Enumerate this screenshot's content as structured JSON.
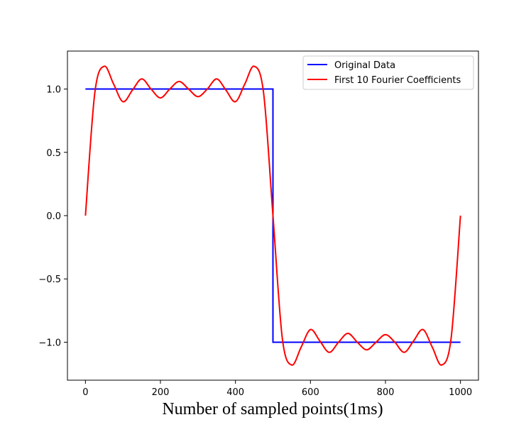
{
  "chart_data": {
    "type": "line",
    "title": "",
    "xlabel": "Number of sampled points(1ms)",
    "ylabel": "",
    "xlim": [
      -48,
      1048
    ],
    "ylim": [
      -1.3,
      1.3
    ],
    "xticks": [
      0,
      200,
      400,
      600,
      800,
      1000
    ],
    "xtick_labels": [
      "0",
      "200",
      "400",
      "600",
      "800",
      "1000"
    ],
    "yticks": [
      1.0,
      0.5,
      0.0,
      -0.5,
      -1.0
    ],
    "ytick_labels": [
      "1.0",
      "0.5",
      "0.0",
      "−0.5",
      "−1.0"
    ],
    "grid": false,
    "legend_position": "top-right",
    "series": [
      {
        "name": "Original Data",
        "color": "#0000ff",
        "x": [
          0,
          500,
          500,
          1000
        ],
        "y": [
          1.0,
          1.0,
          -1.0,
          -1.0
        ]
      },
      {
        "name": "First 10 Fourier Coefficients",
        "color": "#ff0000",
        "x": [
          0,
          25,
          50,
          75,
          100,
          125,
          150,
          175,
          200,
          225,
          250,
          275,
          300,
          325,
          350,
          375,
          400,
          425,
          450,
          475,
          500,
          525,
          550,
          575,
          600,
          625,
          650,
          675,
          700,
          725,
          750,
          775,
          800,
          825,
          850,
          875,
          900,
          925,
          950,
          975,
          1000
        ],
        "y": [
          0.0,
          0.97,
          1.18,
          1.04,
          0.9,
          0.99,
          1.08,
          1.0,
          0.93,
          1.0,
          1.06,
          1.0,
          0.94,
          1.0,
          1.08,
          0.99,
          0.9,
          1.04,
          1.18,
          0.97,
          0.0,
          -0.97,
          -1.18,
          -1.04,
          -0.9,
          -0.99,
          -1.08,
          -1.0,
          -0.93,
          -1.0,
          -1.06,
          -1.0,
          -0.94,
          -1.0,
          -1.08,
          -0.99,
          -0.9,
          -1.04,
          -1.18,
          -0.97,
          0.0
        ]
      }
    ]
  }
}
